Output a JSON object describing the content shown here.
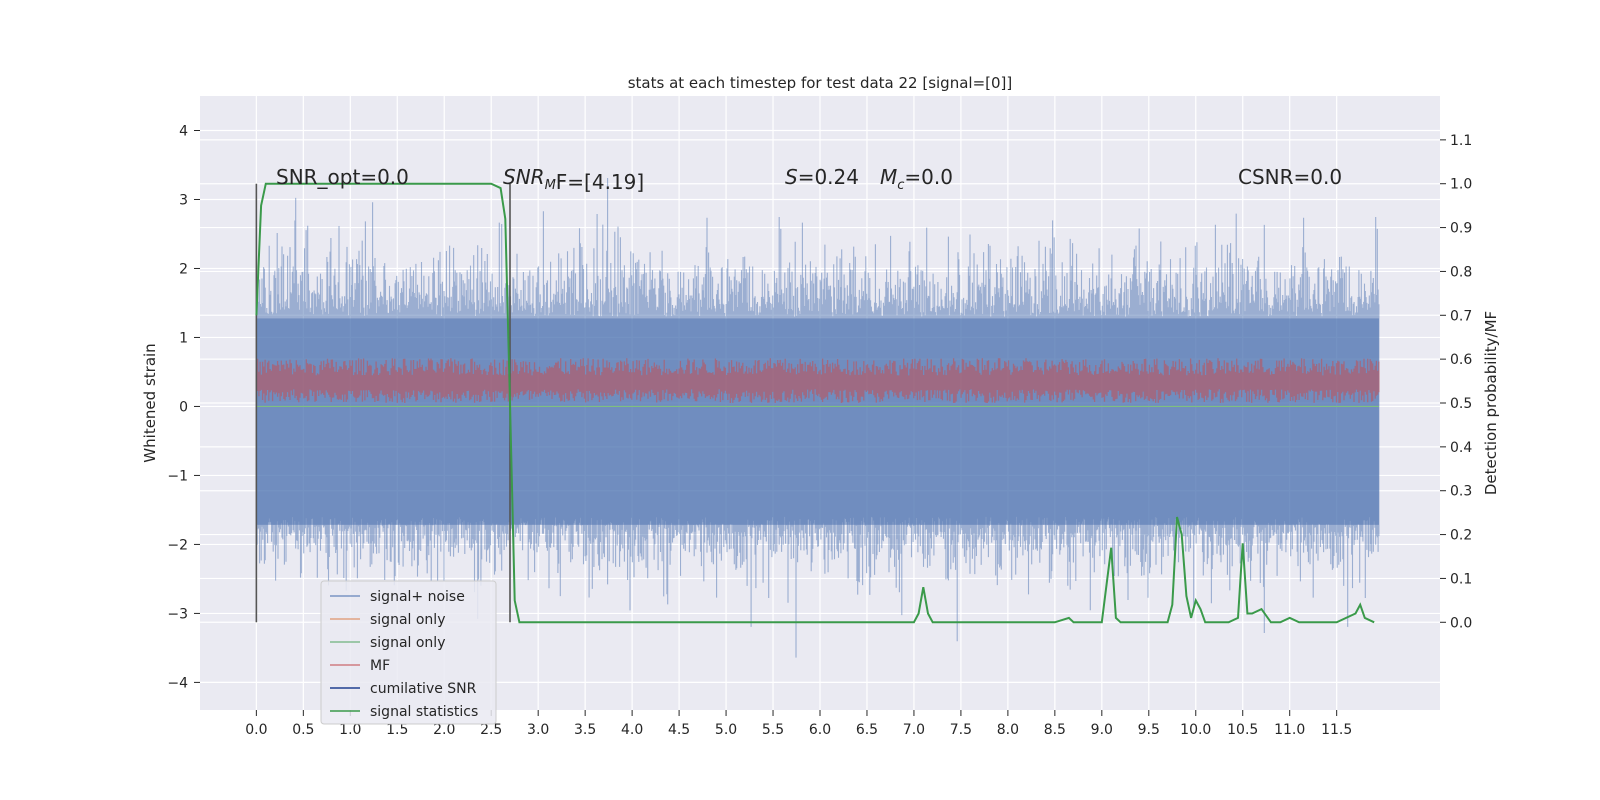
{
  "chart_data": {
    "type": "line",
    "title": "stats at each timestep for test data 22 [signal=[0]]",
    "ylabel_left": "Whitened strain",
    "ylabel_right": "Detection probability/MF",
    "xlim": [
      -0.6,
      12.6
    ],
    "ylim_left": [
      -4.4,
      4.5
    ],
    "ylim_right": [
      -0.2,
      1.2
    ],
    "x_ticks": [
      "0.0",
      "0.5",
      "1.0",
      "1.5",
      "2.0",
      "2.5",
      "3.0",
      "3.5",
      "4.0",
      "4.5",
      "5.0",
      "5.5",
      "6.0",
      "6.5",
      "7.0",
      "7.5",
      "8.0",
      "8.5",
      "9.0",
      "9.5",
      "10.0",
      "10.5",
      "11.0",
      "11.5"
    ],
    "y_ticks_left": [
      "−4",
      "−3",
      "−2",
      "−1",
      "0",
      "1",
      "2",
      "3",
      "4"
    ],
    "y_ticks_right": [
      "0.0",
      "0.1",
      "0.2",
      "0.3",
      "0.4",
      "0.5",
      "0.6",
      "0.7",
      "0.8",
      "0.9",
      "1.0",
      "1.1"
    ],
    "grid": true,
    "legend_placement": "lower-left",
    "annotations": {
      "snr_opt": "SNR_opt=0.0",
      "snr_mf_main": "SNR",
      "snr_mf_sub": "M",
      "snr_mf_rest": "F=[4.19]",
      "s_label": "S",
      "s_value": "=0.24",
      "mc_label": "M",
      "mc_sub": "c",
      "mc_value": "=0.0",
      "csnr": "CSNR=0.0"
    },
    "vertical_markers_x": [
      0.0,
      2.7
    ],
    "series": [
      {
        "name": "signal+ noise",
        "color": "#4c72b0",
        "axis": "left",
        "envelope_upper": 2.2,
        "envelope_lower": -2.2
      },
      {
        "name": "signal only",
        "color": "#dd8452",
        "axis": "left"
      },
      {
        "name": "signal only",
        "color": "#55a868",
        "axis": "left"
      },
      {
        "name": "MF",
        "color": "#c44e52",
        "axis": "left",
        "band": [
          0.05,
          0.6
        ]
      },
      {
        "name": "cumilative SNR",
        "color": "#1f3f8f",
        "axis": "right"
      },
      {
        "name": "signal statistics",
        "color": "#3a9a4a",
        "axis": "right",
        "x": [
          0.0,
          0.05,
          0.1,
          0.5,
          1.0,
          1.5,
          2.0,
          2.5,
          2.6,
          2.65,
          2.7,
          2.75,
          2.8,
          2.9,
          3.0,
          4.0,
          5.0,
          6.0,
          7.0,
          7.05,
          7.1,
          7.15,
          7.2,
          7.5,
          7.9,
          8.0,
          8.5,
          8.65,
          8.7,
          8.8,
          9.0,
          9.1,
          9.15,
          9.2,
          9.3,
          9.7,
          9.75,
          9.8,
          9.85,
          9.9,
          9.95,
          10.0,
          10.05,
          10.1,
          10.15,
          10.2,
          10.3,
          10.35,
          10.45,
          10.5,
          10.55,
          10.6,
          10.7,
          10.8,
          10.85,
          10.9,
          11.0,
          11.1,
          11.2,
          11.5,
          11.6,
          11.7,
          11.75,
          11.8,
          11.9
        ],
        "values": [
          0.7,
          0.95,
          1.0,
          1.0,
          1.0,
          1.0,
          1.0,
          1.0,
          0.99,
          0.92,
          0.5,
          0.05,
          0.0,
          0.0,
          0.0,
          0.0,
          0.0,
          0.0,
          0.0,
          0.02,
          0.08,
          0.02,
          0.0,
          0.0,
          0.0,
          0.0,
          0.0,
          0.01,
          0.0,
          0.0,
          0.0,
          0.17,
          0.01,
          0.0,
          0.0,
          0.0,
          0.04,
          0.24,
          0.2,
          0.06,
          0.01,
          0.05,
          0.03,
          0.0,
          0.0,
          0.0,
          0.0,
          0.0,
          0.01,
          0.18,
          0.02,
          0.02,
          0.03,
          0.0,
          0.0,
          0.0,
          0.01,
          0.0,
          0.0,
          0.0,
          0.01,
          0.02,
          0.04,
          0.01,
          0.0
        ]
      }
    ]
  }
}
